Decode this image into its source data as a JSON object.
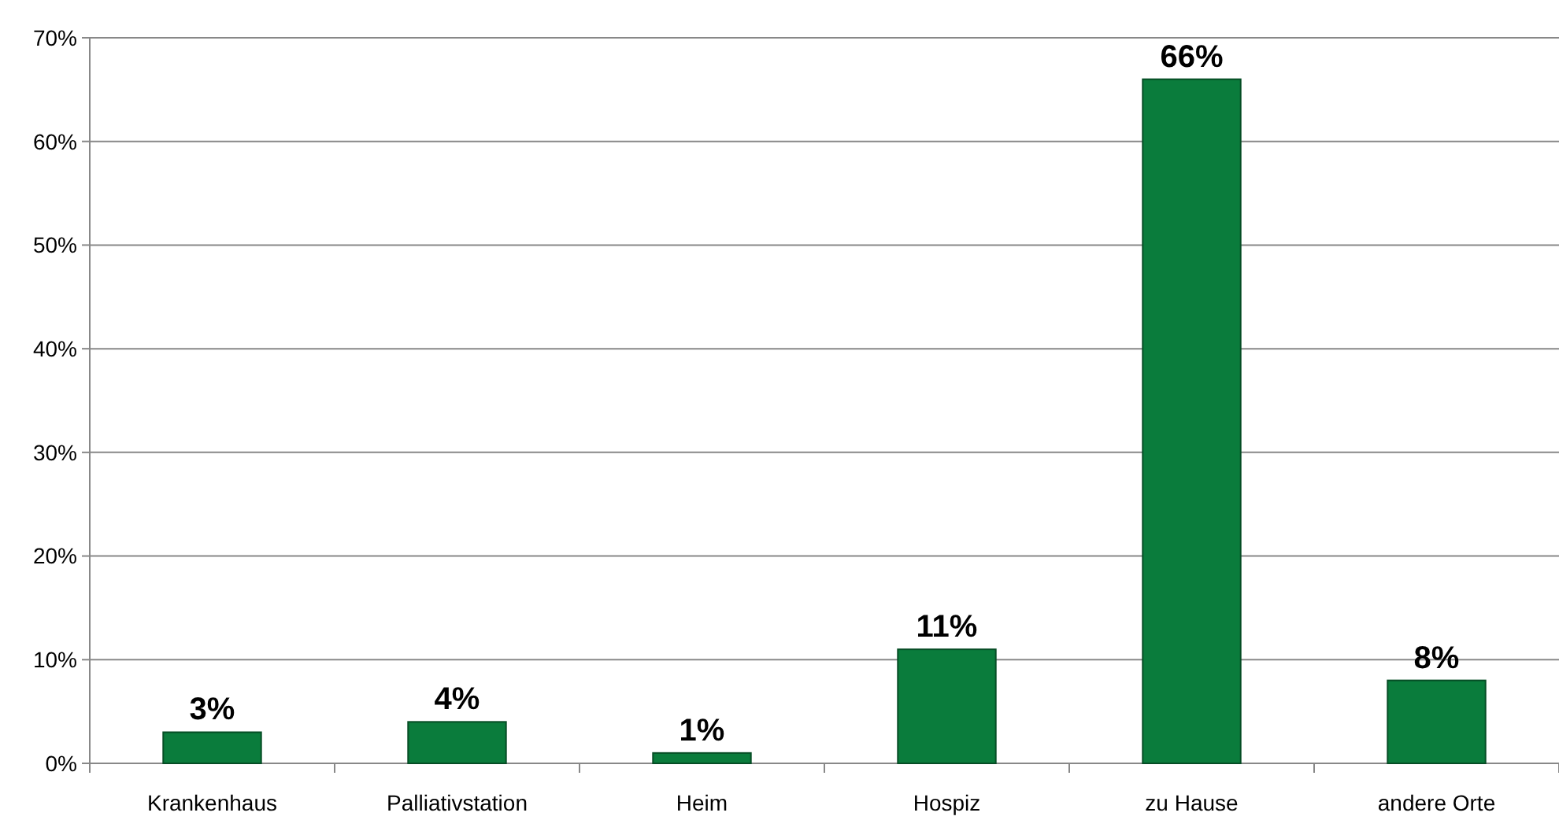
{
  "chart_data": {
    "type": "bar",
    "categories": [
      "Krankenhaus",
      "Palliativstation",
      "Heim",
      "Hospiz",
      "zu Hause",
      "andere Orte"
    ],
    "values": [
      3,
      4,
      1,
      11,
      66,
      8
    ],
    "value_labels": [
      "3%",
      "4%",
      "1%",
      "11%",
      "66%",
      "8%"
    ],
    "color": "#0a7c3c",
    "ylim": [
      0,
      70
    ],
    "yticks": [
      {
        "value": 0,
        "label": "0%"
      },
      {
        "value": 10,
        "label": "10%"
      },
      {
        "value": 20,
        "label": "20%"
      },
      {
        "value": 30,
        "label": "30%"
      },
      {
        "value": 40,
        "label": "40%"
      },
      {
        "value": 50,
        "label": "50%"
      },
      {
        "value": 60,
        "label": "60%"
      },
      {
        "value": 70,
        "label": "70%"
      }
    ],
    "grid": "y"
  }
}
